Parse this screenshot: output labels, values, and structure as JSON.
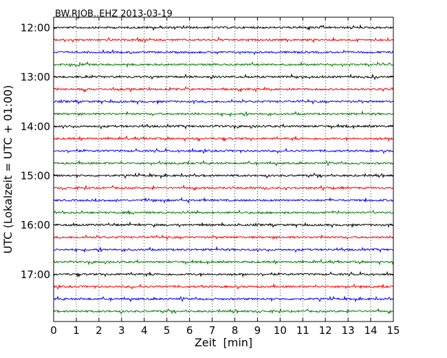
{
  "chart_data": {
    "type": "line",
    "title": "BW.RJOB..EHZ 2013-03-19",
    "xlabel": "Zeit  [min]",
    "ylabel": "UTC (Lokalzeit = UTC + 01:00)",
    "xlim": [
      0,
      15
    ],
    "x_ticks": [
      "0",
      "1",
      "2",
      "3",
      "4",
      "5",
      "6",
      "7",
      "8",
      "9",
      "10",
      "11",
      "12",
      "13",
      "14",
      "15"
    ],
    "y_ticks": [
      "12:00",
      "13:00",
      "14:00",
      "15:00",
      "16:00",
      "17:00"
    ],
    "grid": "vertical-dotted",
    "trace_interval_minutes": 15,
    "trace_colors": [
      "#000000",
      "#ff0000",
      "#0000ff",
      "#008000"
    ],
    "traces": [
      "12:00",
      "12:15",
      "12:30",
      "12:45",
      "13:00",
      "13:15",
      "13:30",
      "13:45",
      "14:00",
      "14:15",
      "14:30",
      "14:45",
      "15:00",
      "15:15",
      "15:30",
      "15:45",
      "16:00",
      "16:15",
      "16:30",
      "16:45",
      "17:00",
      "17:15",
      "17:30",
      "17:45"
    ]
  }
}
